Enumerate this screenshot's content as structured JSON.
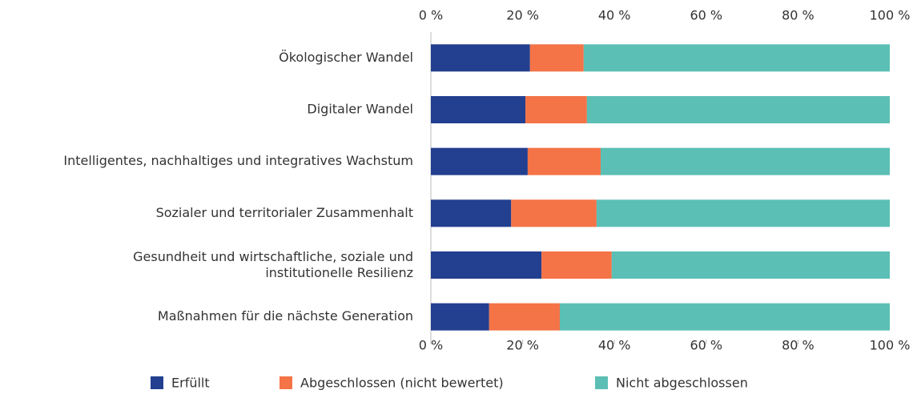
{
  "chart_data": {
    "type": "stacked-barh",
    "categories": [
      "Ökologischer Wandel",
      "Digitaler Wandel",
      "Intelligentes, nachhaltiges und integratives Wachstum",
      "Sozialer und territorialer Zusammenhalt",
      "Gesundheit und wirtschaftliche, soziale und\ninstitutionelle Resilienz",
      "Maßnahmen für die nächste Generation"
    ],
    "series": [
      {
        "name": "Erfüllt",
        "color": "#233f8f",
        "values": [
          21.6,
          20.6,
          21.1,
          17.5,
          24.1,
          12.7
        ]
      },
      {
        "name": "Abgeschlossen (nicht bewertet)",
        "color": "#f47347",
        "values": [
          11.7,
          13.4,
          15.9,
          18.6,
          15.3,
          15.4
        ]
      },
      {
        "name": "Nicht abgeschlossen",
        "color": "#5bbfb5",
        "values": [
          66.7,
          66.0,
          63.0,
          63.9,
          60.6,
          71.9
        ]
      }
    ],
    "xlim": [
      0,
      100
    ],
    "xticks": [
      {
        "value": 0,
        "label": "0 %"
      },
      {
        "value": 20,
        "label": "20 %"
      },
      {
        "value": 40,
        "label": "40 %"
      },
      {
        "value": 60,
        "label": "60 %"
      },
      {
        "value": 80,
        "label": "80 %"
      },
      {
        "value": 100,
        "label": "100 %"
      }
    ],
    "legend": "bottom"
  }
}
